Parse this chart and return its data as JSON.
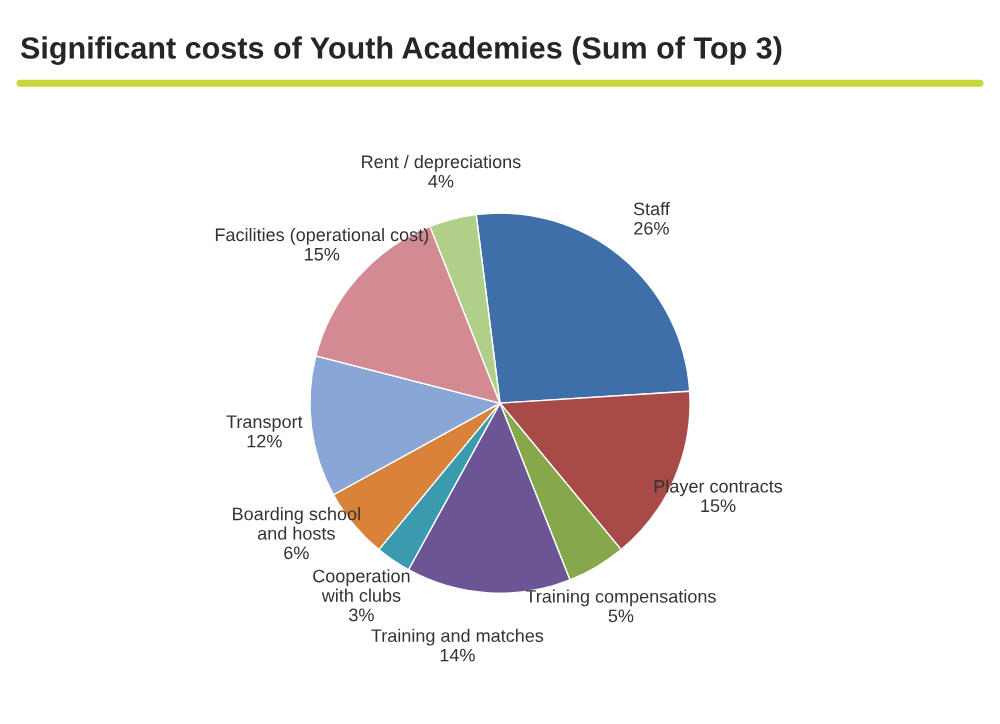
{
  "chart_data": {
    "type": "pie",
    "title": "Significant costs of Youth Academies (Sum of Top 3)",
    "categories": [
      "Staff",
      "Player contracts",
      "Training compensations",
      "Training and matches",
      "Cooperation\nwith clubs",
      "Boarding school\nand hosts",
      "Transport",
      "Facilities (operational cost)",
      "Rent / depreciations"
    ],
    "values": [
      26,
      15,
      5,
      14,
      3,
      6,
      12,
      15,
      4
    ],
    "value_labels": [
      "26%",
      "15%",
      "5%",
      "14%",
      "3%",
      "6%",
      "12%",
      "15%",
      "4%"
    ],
    "colors": [
      "#3f6fa8",
      "#a84a48",
      "#86a84a",
      "#6b5595",
      "#3a9aae",
      "#d9823a",
      "#8aa6d6",
      "#d48a92",
      "#b0d08a"
    ]
  }
}
